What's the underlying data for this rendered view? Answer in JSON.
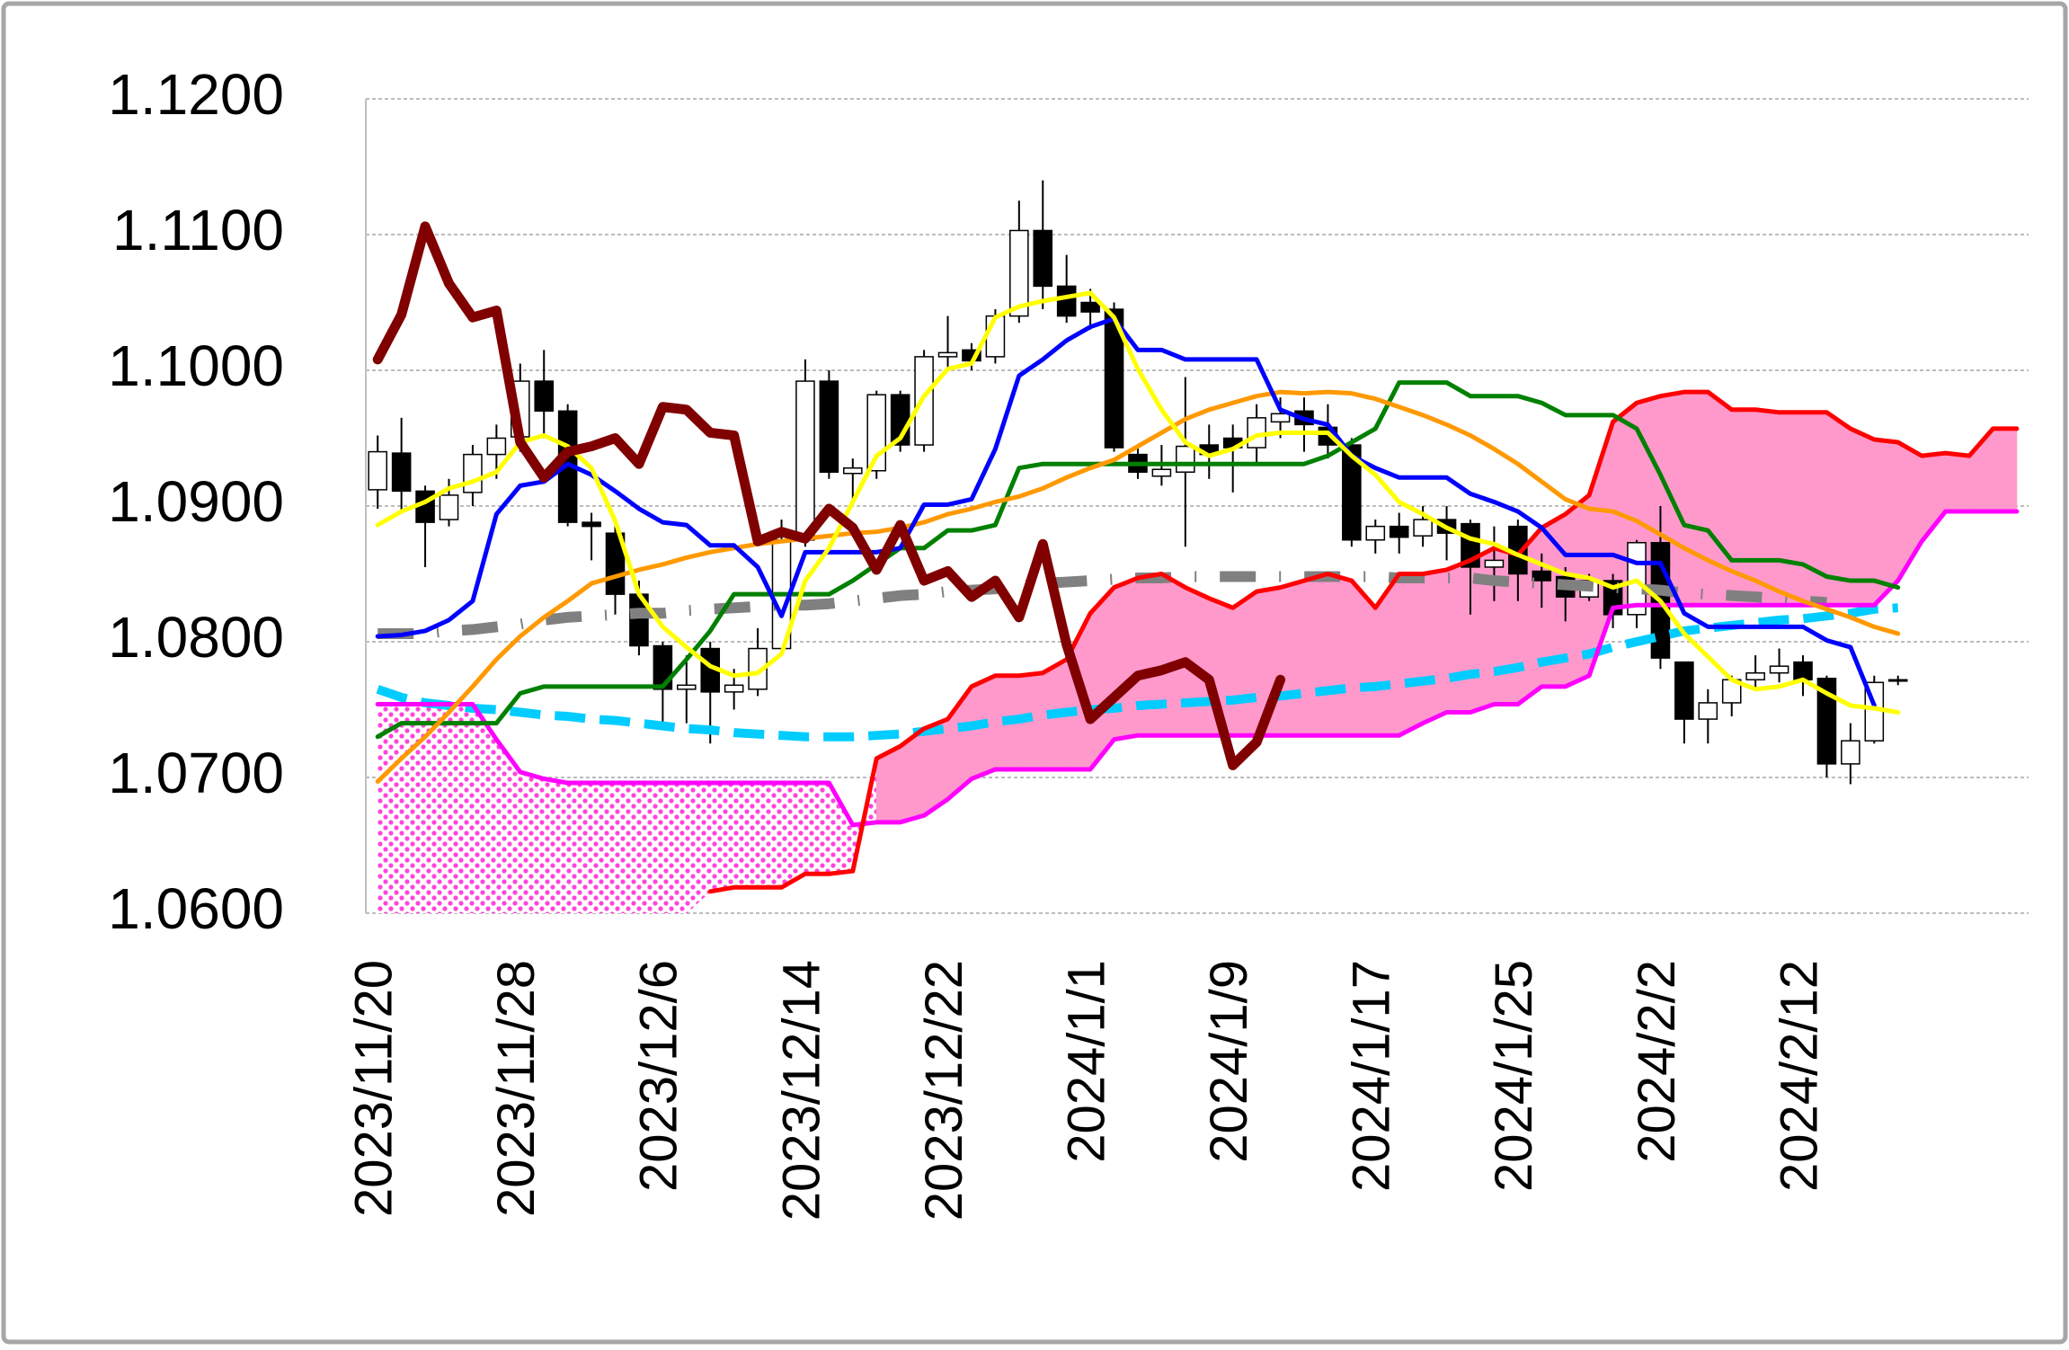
{
  "chart_data": {
    "type": "candlestick",
    "categories": [
      "2023/11/20",
      null,
      null,
      null,
      null,
      null,
      "2023/11/28",
      null,
      null,
      null,
      null,
      null,
      "2023/12/6",
      null,
      null,
      null,
      null,
      null,
      "2023/12/14",
      null,
      null,
      null,
      null,
      null,
      "2023/12/22",
      null,
      null,
      null,
      null,
      null,
      "2024/1/1",
      null,
      null,
      null,
      null,
      null,
      "2024/1/9",
      null,
      null,
      null,
      null,
      null,
      "2024/1/17",
      null,
      null,
      null,
      null,
      null,
      "2024/1/25",
      null,
      null,
      null,
      null,
      null,
      "2024/2/2",
      null,
      null,
      null,
      null,
      null,
      "2024/2/12",
      null,
      null,
      null,
      null,
      null,
      null,
      null,
      null,
      null
    ],
    "open": [
      1.0912,
      1.0939,
      1.0911,
      1.089,
      1.091,
      1.0938,
      1.0951,
      1.0992,
      1.097,
      1.0888,
      1.088,
      1.0835,
      1.0797,
      1.0765,
      1.0795,
      1.0763,
      1.0765,
      1.0795,
      1.0875,
      1.0992,
      1.0924,
      1.0926,
      1.0982,
      1.0945,
      1.101,
      1.1015,
      1.101,
      1.104,
      1.1103,
      1.1062,
      1.105,
      1.1045,
      1.0938,
      1.0922,
      1.0925,
      1.0945,
      1.095,
      1.0943,
      1.0962,
      1.097,
      1.0958,
      1.0945,
      1.0875,
      1.0885,
      1.0878,
      1.089,
      1.0887,
      1.0855,
      1.0885,
      1.0852,
      1.0848,
      1.0833,
      1.0845,
      1.082,
      1.0873,
      1.0785,
      1.0743,
      1.0755,
      1.0772,
      1.0777,
      1.0785,
      1.0773,
      1.071,
      1.0727,
      1.0772,
      null,
      null,
      null,
      null,
      null
    ],
    "high": [
      1.0952,
      1.0965,
      1.0915,
      1.092,
      1.0945,
      1.096,
      1.1005,
      1.1015,
      1.0975,
      1.0895,
      1.0885,
      1.0845,
      1.08,
      1.079,
      1.08,
      1.078,
      1.081,
      1.089,
      1.1008,
      1.1,
      1.0935,
      1.0985,
      1.0985,
      1.1015,
      1.104,
      1.102,
      1.1045,
      1.1125,
      1.114,
      1.1085,
      1.106,
      1.105,
      1.0945,
      1.0945,
      1.0995,
      1.096,
      1.096,
      1.0975,
      1.098,
      1.098,
      1.0975,
      1.095,
      1.089,
      1.0895,
      1.09,
      1.09,
      1.089,
      1.0885,
      1.089,
      1.0865,
      1.0855,
      1.085,
      1.085,
      1.0875,
      1.09,
      1.0785,
      1.0765,
      1.0775,
      1.079,
      1.0795,
      1.079,
      1.0775,
      1.074,
      1.0775,
      1.0775,
      null,
      null,
      null,
      null,
      null
    ],
    "low": [
      1.0898,
      1.0895,
      1.0855,
      1.0885,
      1.09,
      1.092,
      1.094,
      1.095,
      1.0885,
      1.086,
      1.082,
      1.079,
      1.074,
      1.074,
      1.0725,
      1.075,
      1.076,
      1.079,
      1.087,
      1.092,
      1.0905,
      1.092,
      1.094,
      1.094,
      1.1,
      1.1,
      1.1005,
      1.1035,
      1.1045,
      1.1035,
      1.103,
      1.094,
      1.092,
      1.0915,
      1.087,
      1.092,
      1.091,
      1.093,
      1.095,
      1.094,
      1.0935,
      1.087,
      1.0865,
      1.0865,
      1.087,
      1.086,
      1.082,
      1.083,
      1.083,
      1.0825,
      1.0815,
      1.083,
      1.081,
      1.081,
      1.078,
      1.0725,
      1.0725,
      1.0745,
      1.0765,
      1.077,
      1.076,
      1.07,
      1.0695,
      1.0725,
      1.0768,
      null,
      null,
      null,
      null,
      null
    ],
    "close": [
      1.094,
      1.0911,
      1.0888,
      1.0908,
      1.0938,
      1.095,
      1.0992,
      1.097,
      1.0888,
      1.0885,
      1.0835,
      1.0797,
      1.0765,
      1.0768,
      1.0763,
      1.0768,
      1.0795,
      1.0875,
      1.0992,
      1.0925,
      1.0928,
      1.0982,
      1.0945,
      1.101,
      1.1013,
      1.1007,
      1.104,
      1.1103,
      1.1062,
      1.104,
      1.1043,
      1.0943,
      1.0925,
      1.0927,
      1.0944,
      1.0938,
      1.0943,
      1.0965,
      1.0968,
      1.096,
      1.0945,
      1.0875,
      1.0885,
      1.0877,
      1.089,
      1.088,
      1.0855,
      1.086,
      1.085,
      1.0845,
      1.0833,
      1.0845,
      1.082,
      1.0873,
      1.0788,
      1.0743,
      1.0755,
      1.0772,
      1.0777,
      1.0782,
      1.0772,
      1.071,
      1.0727,
      1.077,
      1.0771,
      null,
      null,
      null,
      null,
      null
    ],
    "up_color": "#ffffff",
    "down_color": "#000000",
    "senkou_a": {
      "color": "#ff0000",
      "values": [
        null,
        null,
        null,
        null,
        null,
        null,
        null,
        null,
        null,
        null,
        null,
        null,
        null,
        null,
        1.0616,
        1.0619,
        1.0619,
        1.0619,
        1.0629,
        1.0629,
        1.0631,
        1.0714,
        1.0723,
        1.0736,
        1.0743,
        1.0767,
        1.0775,
        1.0775,
        1.0777,
        1.0787,
        1.0821,
        1.084,
        1.0847,
        1.085,
        1.084,
        1.0832,
        1.0825,
        1.0837,
        1.084,
        1.0845,
        1.085,
        1.0845,
        1.0825,
        1.085,
        1.085,
        1.0853,
        1.086,
        1.0869,
        1.0864,
        1.0884,
        1.0894,
        1.0908,
        1.0962,
        1.0976,
        1.0981,
        1.0984,
        1.0984,
        1.0971,
        1.0971,
        1.0969,
        1.0969,
        1.0969,
        1.0957,
        1.0949,
        1.0947,
        1.0937,
        1.0939,
        1.0937,
        1.0957,
        1.0957
      ]
    },
    "senkou_b": {
      "color": "#ff00ff",
      "values": [
        1.0754,
        1.0754,
        1.0754,
        1.0754,
        1.0754,
        1.0728,
        1.0704,
        1.0699,
        1.0696,
        1.0696,
        1.0696,
        1.0696,
        1.0696,
        1.0696,
        1.0696,
        1.0696,
        1.0696,
        1.0696,
        1.0696,
        1.0696,
        1.0665,
        1.0667,
        1.0667,
        1.0672,
        1.0684,
        1.0699,
        1.0706,
        1.0706,
        1.0706,
        1.0706,
        1.0706,
        1.0728,
        1.0731,
        1.0731,
        1.0731,
        1.0731,
        1.0731,
        1.0731,
        1.0731,
        1.0731,
        1.0731,
        1.0731,
        1.0731,
        1.0731,
        1.074,
        1.0748,
        1.0748,
        1.0754,
        1.0754,
        1.0767,
        1.0767,
        1.0775,
        1.0825,
        1.0827,
        1.0827,
        1.0827,
        1.0827,
        1.0827,
        1.0827,
        1.0827,
        1.0827,
        1.0827,
        1.0827,
        1.0827,
        1.0845,
        1.0874,
        1.0896,
        1.0896,
        1.0896,
        1.0896
      ]
    },
    "cloud": {
      "color": "#ff99cc",
      "pattern_color": "#ff44dd"
    },
    "series": [
      {
        "color": "#00ccff",
        "dash": "dash",
        "values": [
          1.0765,
          1.0759,
          1.0755,
          1.0753,
          1.0751,
          1.075,
          1.0748,
          1.0746,
          1.0745,
          1.0743,
          1.0742,
          1.074,
          1.0738,
          1.0736,
          1.0735,
          1.0733,
          1.0732,
          1.0731,
          1.073,
          1.073,
          1.073,
          1.0731,
          1.0732,
          1.0734,
          1.0736,
          1.0738,
          1.0741,
          1.0743,
          1.0746,
          1.0748,
          1.075,
          1.0751,
          1.0753,
          1.0754,
          1.0755,
          1.0756,
          1.0757,
          1.0759,
          1.076,
          1.0762,
          1.0764,
          1.0766,
          1.0767,
          1.0769,
          1.0771,
          1.0773,
          1.0776,
          1.0778,
          1.0781,
          1.0785,
          1.0788,
          1.0791,
          1.0796,
          1.08,
          1.0804,
          1.0808,
          1.081,
          1.0812,
          1.0814,
          1.0816,
          1.0817,
          1.0819,
          1.0821,
          1.0824,
          1.0825,
          null,
          null,
          null,
          null,
          null
        ]
      },
      {
        "color": "#808080",
        "dash": "dash-dot",
        "values": [
          1.0806,
          1.0806,
          1.0806,
          1.0808,
          1.0809,
          1.0811,
          1.0813,
          1.0816,
          1.0818,
          1.0819,
          1.082,
          1.0821,
          1.0821,
          1.0823,
          1.0824,
          1.0825,
          1.0826,
          1.0827,
          1.0827,
          1.0828,
          1.083,
          1.0832,
          1.0834,
          1.0835,
          1.0837,
          1.0838,
          1.0839,
          1.0841,
          1.0843,
          1.0844,
          1.0845,
          1.0846,
          1.0847,
          1.0847,
          1.0848,
          1.0848,
          1.0848,
          1.0848,
          1.0848,
          1.0848,
          1.0848,
          1.0848,
          1.0848,
          1.0847,
          1.0847,
          1.0847,
          1.0847,
          1.0845,
          1.0844,
          1.0843,
          1.0842,
          1.0841,
          1.084,
          1.0839,
          1.0838,
          1.0836,
          1.0835,
          1.0834,
          1.0833,
          1.0832,
          1.083,
          1.0829,
          null,
          null,
          null,
          null,
          null,
          null,
          null,
          null
        ]
      },
      {
        "color": "#008000",
        "values": [
          1.073,
          1.074,
          1.074,
          1.074,
          1.074,
          1.074,
          1.0762,
          1.0767,
          1.0767,
          1.0767,
          1.0767,
          1.0767,
          1.0767,
          1.0787,
          1.0808,
          1.0835,
          1.0835,
          1.0835,
          1.0835,
          1.0835,
          1.0845,
          1.0857,
          1.0869,
          1.0869,
          1.0882,
          1.0882,
          1.0886,
          1.0928,
          1.0931,
          1.0931,
          1.0931,
          1.0931,
          1.0931,
          1.0931,
          1.0931,
          1.0931,
          1.0931,
          1.0931,
          1.0931,
          1.0931,
          1.0937,
          1.0947,
          1.0957,
          1.0991,
          1.0991,
          1.0991,
          1.0981,
          1.0981,
          1.0981,
          1.0976,
          1.0967,
          1.0967,
          1.0967,
          1.0957,
          1.0923,
          1.0886,
          1.0882,
          1.086,
          1.086,
          1.086,
          1.0857,
          1.0848,
          1.0845,
          1.0845,
          1.084,
          null,
          null,
          null,
          null,
          null
        ]
      },
      {
        "color": "#ff9900",
        "values": [
          1.0697,
          1.0714,
          1.073,
          1.0748,
          1.0767,
          1.0787,
          1.0804,
          1.0818,
          1.083,
          1.0843,
          1.0848,
          1.0853,
          1.0857,
          1.0862,
          1.0866,
          1.0869,
          1.0872,
          1.0874,
          1.0876,
          1.0878,
          1.088,
          1.0881,
          1.0884,
          1.0888,
          1.0894,
          1.0898,
          1.0903,
          1.0907,
          1.0913,
          1.0921,
          1.0928,
          1.0934,
          1.0944,
          1.0954,
          1.0964,
          1.0971,
          1.0976,
          1.0981,
          1.0984,
          1.0983,
          1.0984,
          1.0983,
          1.0979,
          1.0973,
          1.0967,
          1.096,
          1.0952,
          1.0942,
          1.0931,
          1.0918,
          1.0905,
          1.0898,
          1.0896,
          1.0889,
          1.0879,
          1.0869,
          1.086,
          1.0852,
          1.0845,
          1.0837,
          1.083,
          1.0824,
          1.0818,
          1.0811,
          1.0806,
          null,
          null,
          null,
          null,
          null
        ]
      },
      {
        "color": "#0000ff",
        "values": [
          1.0804,
          1.0805,
          1.0808,
          1.0816,
          1.083,
          1.0894,
          1.0915,
          1.0918,
          1.0931,
          1.0923,
          1.0911,
          1.0898,
          1.0888,
          1.0886,
          1.0871,
          1.0871,
          1.0855,
          1.0819,
          1.0866,
          1.0866,
          1.0866,
          1.0866,
          1.0869,
          1.0901,
          1.0901,
          1.0905,
          1.0942,
          1.0996,
          1.1008,
          1.1022,
          1.1032,
          1.1038,
          1.1015,
          1.1015,
          1.1008,
          1.1008,
          1.1008,
          1.1008,
          1.0971,
          1.0964,
          1.096,
          1.0937,
          1.0928,
          1.0921,
          1.0921,
          1.0921,
          1.0909,
          1.0903,
          1.0896,
          1.0884,
          1.0864,
          1.0864,
          1.0864,
          1.0858,
          1.0858,
          1.0821,
          1.0811,
          1.0811,
          1.0811,
          1.0811,
          1.0811,
          1.0801,
          1.0796,
          1.0753,
          null,
          null,
          null,
          null,
          null,
          null
        ]
      },
      {
        "color": "#ffff00",
        "values": [
          1.0886,
          1.0896,
          1.0903,
          1.0913,
          1.0918,
          1.0925,
          1.0947,
          1.0952,
          1.0944,
          1.0928,
          1.0889,
          1.0835,
          1.0811,
          1.0796,
          1.0782,
          1.0775,
          1.0777,
          1.0791,
          1.0845,
          1.0869,
          1.0903,
          1.0937,
          1.095,
          1.0981,
          1.1001,
          1.1005,
          1.1039,
          1.1047,
          1.1051,
          1.1054,
          1.1057,
          1.1039,
          1.1001,
          1.0971,
          1.0947,
          1.0937,
          1.0942,
          1.0952,
          1.0954,
          1.0954,
          1.0954,
          1.0937,
          1.0923,
          1.0903,
          1.0894,
          1.0884,
          1.0876,
          1.0872,
          1.0864,
          1.0857,
          1.085,
          1.0847,
          1.084,
          1.0845,
          1.083,
          1.0806,
          1.0789,
          1.0772,
          1.0765,
          1.0767,
          1.0772,
          1.0762,
          1.0753,
          1.0751,
          1.0748,
          null,
          null,
          null,
          null,
          null
        ]
      },
      {
        "color": "#800000",
        "values": [
          1.1008,
          1.1041,
          1.1106,
          1.1064,
          1.1039,
          1.1044,
          1.0947,
          1.0921,
          1.094,
          1.0944,
          1.095,
          1.0931,
          1.0973,
          1.0971,
          1.0954,
          1.0952,
          1.0874,
          1.0881,
          1.0876,
          1.0898,
          1.0884,
          1.0853,
          1.0886,
          1.0845,
          1.0852,
          1.0833,
          1.0845,
          1.0818,
          1.0872,
          1.0798,
          1.0743,
          1.0759,
          1.0775,
          1.0779,
          1.0785,
          1.0772,
          1.0709,
          1.0726,
          1.0772,
          null,
          null,
          null,
          null,
          null,
          null,
          null,
          null,
          null,
          null,
          null,
          null,
          null,
          null,
          null,
          null,
          null,
          null,
          null,
          null,
          null,
          null,
          null,
          null,
          null,
          null,
          null,
          null,
          null,
          null,
          null
        ]
      }
    ],
    "ylim": [
      1.06,
      1.12
    ],
    "yticks": [
      {
        "value": 1.06,
        "label": "1.0600"
      },
      {
        "value": 1.07,
        "label": "1.0700"
      },
      {
        "value": 1.08,
        "label": "1.0800"
      },
      {
        "value": 1.09,
        "label": "1.0900"
      },
      {
        "value": 1.1,
        "label": "1.1000"
      },
      {
        "value": 1.11,
        "label": "1.1100"
      },
      {
        "value": 1.12,
        "label": "1.1200"
      }
    ],
    "grid": true
  }
}
